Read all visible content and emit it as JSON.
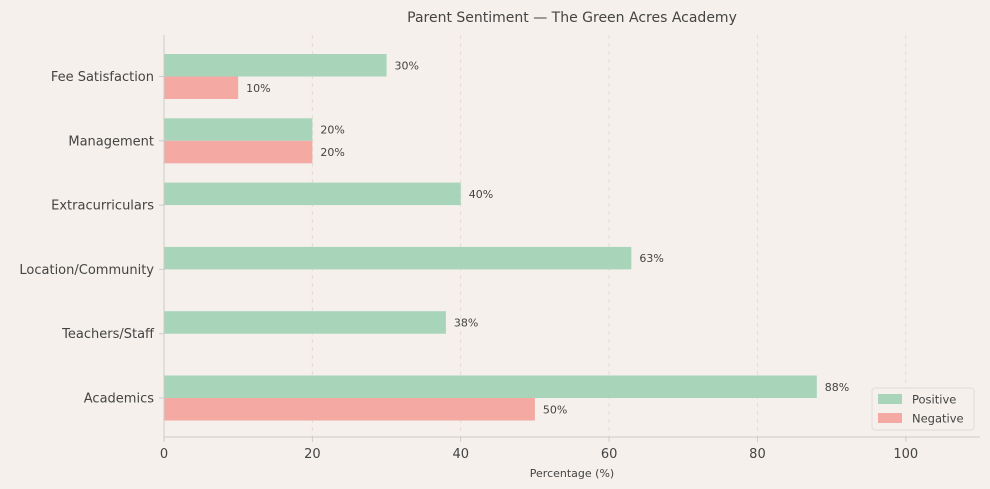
{
  "chart_data": {
    "type": "bar",
    "orientation": "horizontal",
    "title": "Parent Sentiment — The Green Acres Academy",
    "xlabel": "Percentage (%)",
    "ylabel": "",
    "categories": [
      "Academics",
      "Teachers/Staff",
      "Location/Community",
      "Extracurriculars",
      "Management",
      "Fee Satisfaction"
    ],
    "series": [
      {
        "name": "Positive",
        "color": "#a8d5ba",
        "values": [
          88,
          38,
          63,
          40,
          20,
          30
        ],
        "labels": [
          "88%",
          "38%",
          "63%",
          "40%",
          "20%",
          "30%"
        ]
      },
      {
        "name": "Negative",
        "color": "#f4a9a3",
        "values": [
          50,
          0,
          0,
          0,
          20,
          10
        ],
        "labels": [
          "50%",
          "",
          "",
          "",
          "20%",
          "10%"
        ]
      }
    ],
    "xlim": [
      0,
      110
    ],
    "xticks": [
      0,
      20,
      40,
      60,
      80,
      100
    ],
    "xtick_labels": [
      "0",
      "20",
      "40",
      "60",
      "80",
      "100"
    ],
    "grid": "vertical dashed",
    "legend": {
      "position": "bottom-right"
    }
  }
}
